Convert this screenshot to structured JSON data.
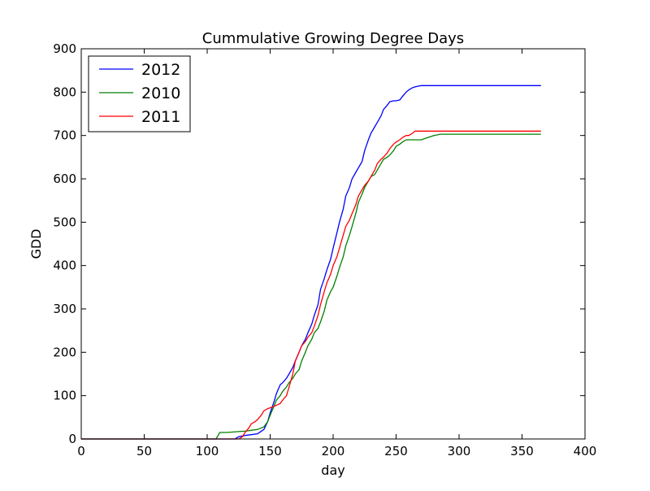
{
  "chart_data": {
    "type": "line",
    "title": "Cummulative Growing Degree Days",
    "xlabel": "day",
    "ylabel": "GDD",
    "xlim": [
      0,
      400
    ],
    "ylim": [
      0,
      900
    ],
    "xticks": [
      0,
      50,
      100,
      150,
      200,
      250,
      300,
      350,
      400
    ],
    "yticks": [
      0,
      100,
      200,
      300,
      400,
      500,
      600,
      700,
      800,
      900
    ],
    "grid": false,
    "legend_position": "top-left",
    "series": [
      {
        "name": "2012",
        "color": "#0000ff",
        "x": [
          0,
          122,
          125,
          130,
          135,
          140,
          145,
          148,
          150,
          153,
          155,
          158,
          160,
          163,
          165,
          168,
          170,
          173,
          175,
          178,
          180,
          183,
          185,
          188,
          190,
          193,
          195,
          198,
          200,
          203,
          205,
          208,
          210,
          213,
          215,
          218,
          220,
          223,
          225,
          228,
          230,
          233,
          235,
          238,
          240,
          243,
          245,
          248,
          250,
          253,
          255,
          258,
          260,
          263,
          265,
          268,
          270,
          273,
          275,
          280,
          300,
          320,
          340,
          350,
          355,
          365
        ],
        "y": [
          0,
          0,
          5,
          8,
          10,
          12,
          22,
          40,
          60,
          85,
          105,
          125,
          130,
          140,
          150,
          165,
          180,
          200,
          215,
          230,
          245,
          265,
          285,
          310,
          345,
          370,
          390,
          415,
          440,
          475,
          500,
          530,
          560,
          580,
          600,
          615,
          625,
          640,
          665,
          690,
          705,
          720,
          730,
          745,
          760,
          770,
          778,
          780,
          780,
          782,
          790,
          800,
          805,
          810,
          812,
          814,
          815,
          815,
          815,
          815,
          815,
          815,
          815,
          815,
          815,
          815
        ]
      },
      {
        "name": "2010",
        "color": "#008000",
        "x": [
          0,
          107,
          110,
          115,
          120,
          125,
          130,
          135,
          140,
          145,
          148,
          150,
          153,
          155,
          158,
          160,
          163,
          165,
          168,
          170,
          173,
          175,
          178,
          180,
          183,
          185,
          188,
          190,
          193,
          195,
          198,
          200,
          203,
          205,
          208,
          210,
          213,
          215,
          218,
          220,
          223,
          225,
          228,
          230,
          233,
          235,
          238,
          240,
          243,
          245,
          248,
          250,
          253,
          255,
          258,
          260,
          265,
          270,
          275,
          280,
          285,
          300,
          365
        ],
        "y": [
          0,
          0,
          15,
          15,
          16,
          17,
          18,
          20,
          22,
          28,
          40,
          55,
          75,
          90,
          100,
          110,
          120,
          130,
          140,
          150,
          160,
          180,
          200,
          215,
          230,
          245,
          255,
          270,
          295,
          320,
          340,
          350,
          375,
          395,
          420,
          445,
          470,
          490,
          520,
          545,
          565,
          580,
          595,
          605,
          610,
          620,
          635,
          645,
          650,
          655,
          665,
          675,
          680,
          685,
          690,
          690,
          690,
          690,
          695,
          700,
          703,
          703,
          703
        ]
      },
      {
        "name": "2011",
        "color": "#ff0000",
        "x": [
          0,
          125,
          128,
          130,
          133,
          135,
          138,
          140,
          143,
          145,
          148,
          150,
          153,
          155,
          158,
          160,
          163,
          165,
          168,
          170,
          173,
          175,
          178,
          180,
          183,
          185,
          188,
          190,
          193,
          195,
          198,
          200,
          203,
          205,
          208,
          210,
          213,
          215,
          218,
          220,
          223,
          225,
          228,
          230,
          233,
          235,
          238,
          240,
          243,
          245,
          248,
          250,
          253,
          255,
          258,
          260,
          263,
          265,
          270,
          275,
          300,
          365
        ],
        "y": [
          0,
          0,
          5,
          15,
          25,
          35,
          40,
          45,
          55,
          65,
          70,
          72,
          75,
          78,
          82,
          90,
          100,
          120,
          150,
          180,
          200,
          215,
          225,
          235,
          245,
          260,
          285,
          310,
          340,
          360,
          380,
          400,
          420,
          440,
          470,
          490,
          505,
          520,
          540,
          560,
          575,
          585,
          595,
          605,
          620,
          635,
          645,
          650,
          660,
          670,
          680,
          685,
          690,
          695,
          700,
          700,
          705,
          710,
          710,
          710,
          710,
          710
        ]
      }
    ]
  }
}
